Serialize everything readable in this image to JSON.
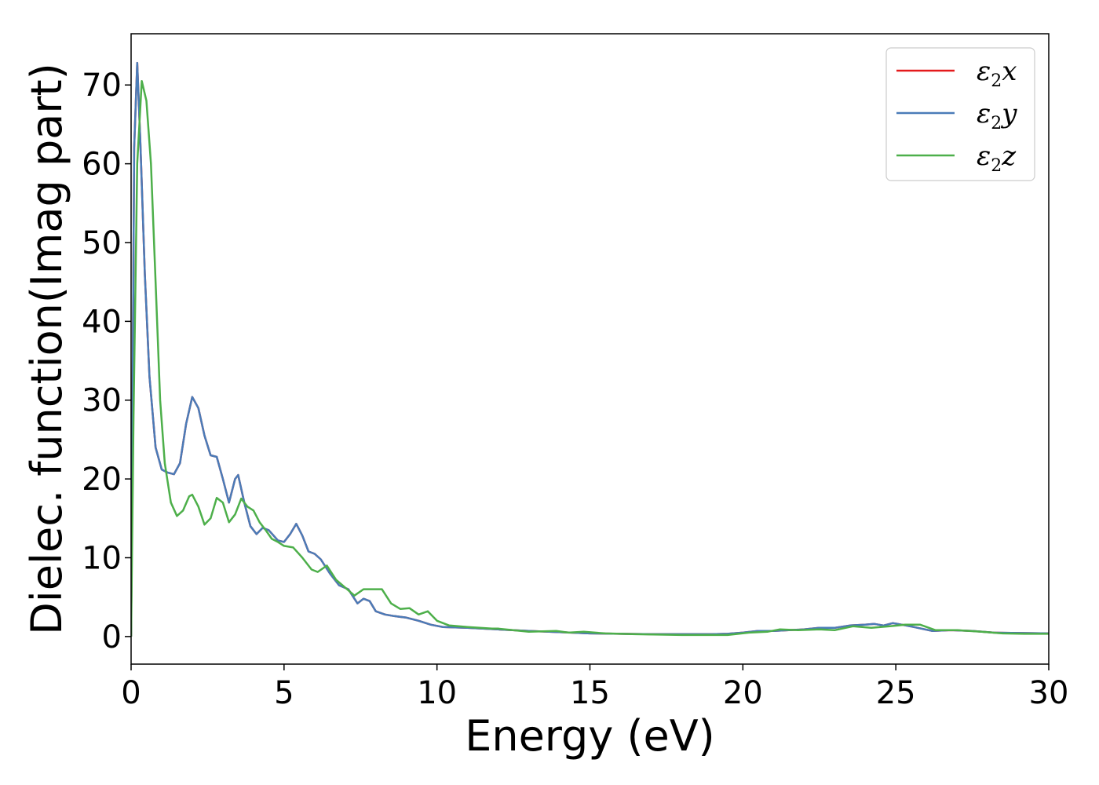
{
  "chart_data": {
    "type": "line",
    "xlabel": "Energy (eV)",
    "ylabel": "Dielec. function(Imag part)",
    "xlim": [
      0,
      30
    ],
    "ylim": [
      -3.5,
      76.5
    ],
    "xticks": [
      "0",
      "5",
      "10",
      "15",
      "20",
      "25",
      "30"
    ],
    "yticks": [
      "0",
      "10",
      "20",
      "30",
      "40",
      "50",
      "60",
      "70"
    ],
    "grid": false,
    "legend_position": "top-right",
    "series": [
      {
        "name": "ε2x",
        "symbol": "ε",
        "sub": "2",
        "axis": "x",
        "color": "#e41a1c",
        "points": [
          [
            0,
            0
          ],
          [
            0.05,
            30
          ],
          [
            0.1,
            62
          ],
          [
            0.2,
            72.8
          ],
          [
            0.3,
            63
          ],
          [
            0.45,
            46
          ],
          [
            0.6,
            33
          ],
          [
            0.8,
            24
          ],
          [
            1.0,
            21.2
          ],
          [
            1.2,
            20.8
          ],
          [
            1.4,
            20.6
          ],
          [
            1.6,
            22
          ],
          [
            1.8,
            27
          ],
          [
            2.0,
            30.4
          ],
          [
            2.2,
            29
          ],
          [
            2.4,
            25.5
          ],
          [
            2.6,
            23
          ],
          [
            2.8,
            22.8
          ],
          [
            3.0,
            20
          ],
          [
            3.2,
            17
          ],
          [
            3.4,
            20
          ],
          [
            3.5,
            20.5
          ],
          [
            3.7,
            17
          ],
          [
            3.9,
            14
          ],
          [
            4.1,
            13
          ],
          [
            4.3,
            13.8
          ],
          [
            4.5,
            13.5
          ],
          [
            4.8,
            12.2
          ],
          [
            5.0,
            12.0
          ],
          [
            5.2,
            13
          ],
          [
            5.4,
            14.3
          ],
          [
            5.6,
            12.8
          ],
          [
            5.8,
            10.8
          ],
          [
            6.0,
            10.5
          ],
          [
            6.2,
            9.8
          ],
          [
            6.5,
            8
          ],
          [
            6.8,
            6.5
          ],
          [
            7.1,
            6
          ],
          [
            7.4,
            4.2
          ],
          [
            7.6,
            4.8
          ],
          [
            7.8,
            4.5
          ],
          [
            8.0,
            3.2
          ],
          [
            8.3,
            2.8
          ],
          [
            8.6,
            2.6
          ],
          [
            9.0,
            2.4
          ],
          [
            9.4,
            2.0
          ],
          [
            9.8,
            1.5
          ],
          [
            10.2,
            1.2
          ],
          [
            11,
            1.1
          ],
          [
            12,
            0.9
          ],
          [
            13,
            0.7
          ],
          [
            14,
            0.55
          ],
          [
            15,
            0.4
          ],
          [
            16,
            0.35
          ],
          [
            17,
            0.3
          ],
          [
            18,
            0.3
          ],
          [
            19,
            0.3
          ],
          [
            19.5,
            0.35
          ],
          [
            20,
            0.5
          ],
          [
            20.5,
            0.7
          ],
          [
            21,
            0.7
          ],
          [
            21.5,
            0.8
          ],
          [
            22,
            0.9
          ],
          [
            22.5,
            1.1
          ],
          [
            23,
            1.1
          ],
          [
            23.5,
            1.4
          ],
          [
            24,
            1.5
          ],
          [
            24.3,
            1.6
          ],
          [
            24.6,
            1.4
          ],
          [
            24.9,
            1.7
          ],
          [
            25.2,
            1.5
          ],
          [
            25.6,
            1.2
          ],
          [
            26.2,
            0.7
          ],
          [
            26.8,
            0.8
          ],
          [
            27.5,
            0.7
          ],
          [
            28.2,
            0.5
          ],
          [
            29,
            0.45
          ],
          [
            30,
            0.4
          ]
        ]
      },
      {
        "name": "ε2y",
        "symbol": "ε",
        "sub": "2",
        "axis": "y",
        "color": "#4a7cb8",
        "points": [
          [
            0,
            0
          ],
          [
            0.05,
            30
          ],
          [
            0.1,
            62
          ],
          [
            0.2,
            72.8
          ],
          [
            0.3,
            63
          ],
          [
            0.45,
            46
          ],
          [
            0.6,
            33
          ],
          [
            0.8,
            24
          ],
          [
            1.0,
            21.2
          ],
          [
            1.2,
            20.8
          ],
          [
            1.4,
            20.6
          ],
          [
            1.6,
            22
          ],
          [
            1.8,
            27
          ],
          [
            2.0,
            30.4
          ],
          [
            2.2,
            29
          ],
          [
            2.4,
            25.5
          ],
          [
            2.6,
            23
          ],
          [
            2.8,
            22.8
          ],
          [
            3.0,
            20
          ],
          [
            3.2,
            17
          ],
          [
            3.4,
            20
          ],
          [
            3.5,
            20.5
          ],
          [
            3.7,
            17
          ],
          [
            3.9,
            14
          ],
          [
            4.1,
            13
          ],
          [
            4.3,
            13.8
          ],
          [
            4.5,
            13.5
          ],
          [
            4.8,
            12.2
          ],
          [
            5.0,
            12.0
          ],
          [
            5.2,
            13
          ],
          [
            5.4,
            14.3
          ],
          [
            5.6,
            12.8
          ],
          [
            5.8,
            10.8
          ],
          [
            6.0,
            10.5
          ],
          [
            6.2,
            9.8
          ],
          [
            6.5,
            8
          ],
          [
            6.8,
            6.5
          ],
          [
            7.1,
            6
          ],
          [
            7.4,
            4.2
          ],
          [
            7.6,
            4.8
          ],
          [
            7.8,
            4.5
          ],
          [
            8.0,
            3.2
          ],
          [
            8.3,
            2.8
          ],
          [
            8.6,
            2.6
          ],
          [
            9.0,
            2.4
          ],
          [
            9.4,
            2.0
          ],
          [
            9.8,
            1.5
          ],
          [
            10.2,
            1.2
          ],
          [
            11,
            1.1
          ],
          [
            12,
            0.9
          ],
          [
            13,
            0.7
          ],
          [
            14,
            0.55
          ],
          [
            15,
            0.4
          ],
          [
            16,
            0.35
          ],
          [
            17,
            0.3
          ],
          [
            18,
            0.3
          ],
          [
            19,
            0.3
          ],
          [
            19.5,
            0.35
          ],
          [
            20,
            0.5
          ],
          [
            20.5,
            0.7
          ],
          [
            21,
            0.7
          ],
          [
            21.5,
            0.8
          ],
          [
            22,
            0.9
          ],
          [
            22.5,
            1.1
          ],
          [
            23,
            1.1
          ],
          [
            23.5,
            1.4
          ],
          [
            24,
            1.5
          ],
          [
            24.3,
            1.6
          ],
          [
            24.6,
            1.4
          ],
          [
            24.9,
            1.7
          ],
          [
            25.2,
            1.5
          ],
          [
            25.6,
            1.2
          ],
          [
            26.2,
            0.7
          ],
          [
            26.8,
            0.8
          ],
          [
            27.5,
            0.7
          ],
          [
            28.2,
            0.5
          ],
          [
            29,
            0.45
          ],
          [
            30,
            0.4
          ]
        ]
      },
      {
        "name": "ε2z",
        "symbol": "ε",
        "sub": "2",
        "axis": "z",
        "color": "#4daf4a",
        "points": [
          [
            0,
            0
          ],
          [
            0.08,
            28
          ],
          [
            0.2,
            60
          ],
          [
            0.35,
            70.5
          ],
          [
            0.5,
            68
          ],
          [
            0.65,
            60
          ],
          [
            0.8,
            45
          ],
          [
            0.95,
            30
          ],
          [
            1.1,
            22
          ],
          [
            1.3,
            17
          ],
          [
            1.5,
            15.3
          ],
          [
            1.7,
            16
          ],
          [
            1.9,
            17.8
          ],
          [
            2.0,
            18
          ],
          [
            2.2,
            16.5
          ],
          [
            2.4,
            14.2
          ],
          [
            2.6,
            15
          ],
          [
            2.8,
            17.6
          ],
          [
            3.0,
            17
          ],
          [
            3.2,
            14.5
          ],
          [
            3.4,
            15.5
          ],
          [
            3.6,
            17.5
          ],
          [
            3.8,
            16.5
          ],
          [
            4.0,
            16.0
          ],
          [
            4.2,
            14.5
          ],
          [
            4.4,
            13.5
          ],
          [
            4.6,
            12.4
          ],
          [
            4.8,
            12
          ],
          [
            5.0,
            11.5
          ],
          [
            5.3,
            11.3
          ],
          [
            5.6,
            10.0
          ],
          [
            5.9,
            8.5
          ],
          [
            6.1,
            8.2
          ],
          [
            6.4,
            9
          ],
          [
            6.7,
            7.2
          ],
          [
            7.0,
            6.2
          ],
          [
            7.3,
            5.2
          ],
          [
            7.6,
            6
          ],
          [
            7.9,
            6.0
          ],
          [
            8.2,
            6.0
          ],
          [
            8.5,
            4.2
          ],
          [
            8.8,
            3.5
          ],
          [
            9.1,
            3.6
          ],
          [
            9.4,
            2.8
          ],
          [
            9.7,
            3.2
          ],
          [
            10.0,
            2.0
          ],
          [
            10.4,
            1.4
          ],
          [
            11,
            1.2
          ],
          [
            11.8,
            1.0
          ],
          [
            12,
            1.0
          ],
          [
            13,
            0.6
          ],
          [
            13.9,
            0.7
          ],
          [
            14.3,
            0.5
          ],
          [
            14.8,
            0.6
          ],
          [
            15.5,
            0.4
          ],
          [
            16.5,
            0.3
          ],
          [
            18,
            0.2
          ],
          [
            19.5,
            0.2
          ],
          [
            20.2,
            0.5
          ],
          [
            20.8,
            0.6
          ],
          [
            21.2,
            0.9
          ],
          [
            21.8,
            0.8
          ],
          [
            22.5,
            0.9
          ],
          [
            23.0,
            0.8
          ],
          [
            23.6,
            1.3
          ],
          [
            24.2,
            1.1
          ],
          [
            24.8,
            1.3
          ],
          [
            25.3,
            1.5
          ],
          [
            25.8,
            1.5
          ],
          [
            26.3,
            0.8
          ],
          [
            27,
            0.8
          ],
          [
            27.8,
            0.6
          ],
          [
            28.5,
            0.4
          ],
          [
            29.2,
            0.35
          ],
          [
            30,
            0.35
          ]
        ]
      }
    ]
  }
}
